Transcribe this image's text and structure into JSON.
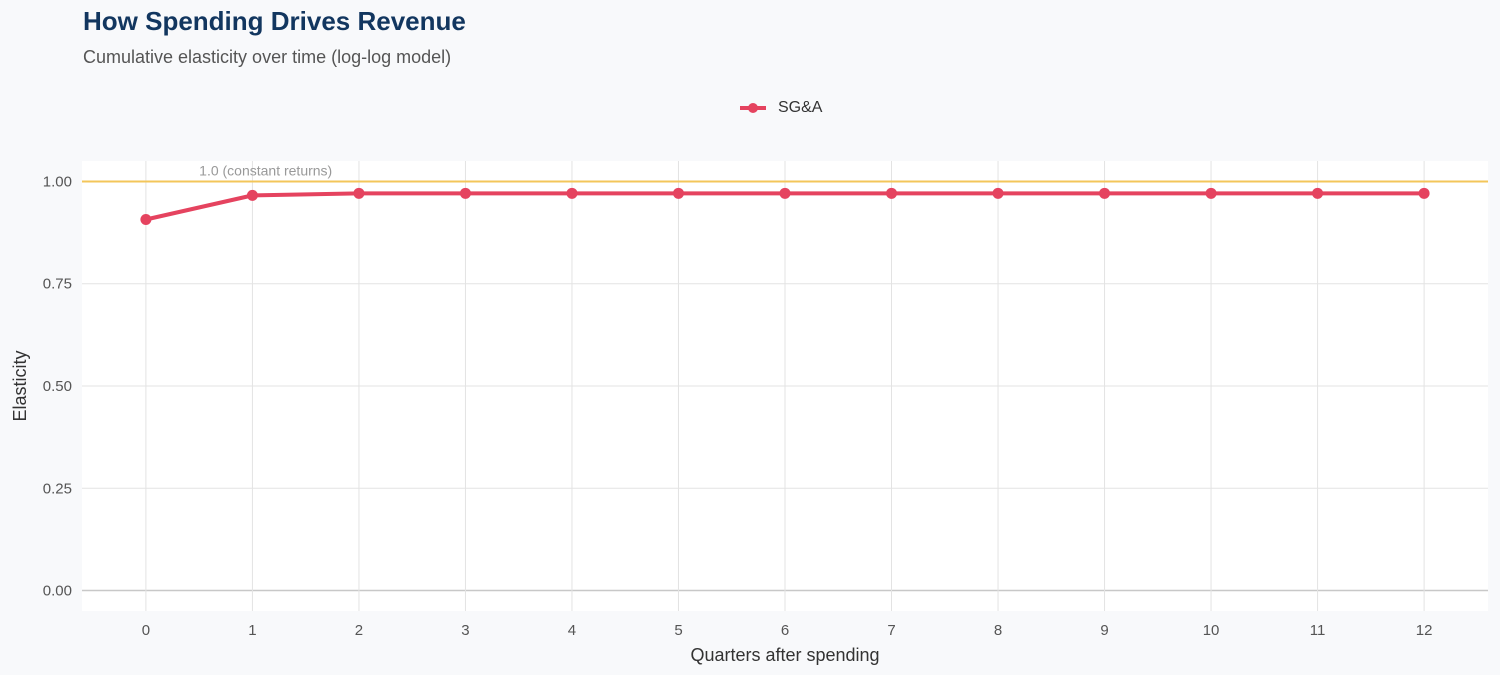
{
  "chart_data": {
    "type": "line",
    "title": "How Spending Drives Revenue",
    "subtitle": "Cumulative elasticity over time (log-log model)",
    "xlabel": "Quarters after spending",
    "ylabel": "Elasticity",
    "x": [
      0,
      1,
      2,
      3,
      4,
      5,
      6,
      7,
      8,
      9,
      10,
      11,
      12
    ],
    "xlim": [
      -0.6,
      12.6
    ],
    "ylim": [
      -0.05,
      1.05
    ],
    "yticks": [
      0,
      0.25,
      0.5,
      0.75,
      1.0
    ],
    "ytick_labels": [
      "0.00",
      "0.25",
      "0.50",
      "0.75",
      "1.00"
    ],
    "xtick_labels": [
      "0",
      "1",
      "2",
      "3",
      "4",
      "5",
      "6",
      "7",
      "8",
      "9",
      "10",
      "11",
      "12"
    ],
    "grid": true,
    "legend_position": "top",
    "series": [
      {
        "name": "SG&A",
        "color": "#e5435f",
        "values": [
          0.907,
          0.966,
          0.971,
          0.971,
          0.971,
          0.971,
          0.971,
          0.971,
          0.971,
          0.971,
          0.971,
          0.971,
          0.971
        ]
      }
    ],
    "reference_line": {
      "y": 1.0,
      "label": "1.0 (constant returns)",
      "color": "#f3c65a"
    }
  }
}
